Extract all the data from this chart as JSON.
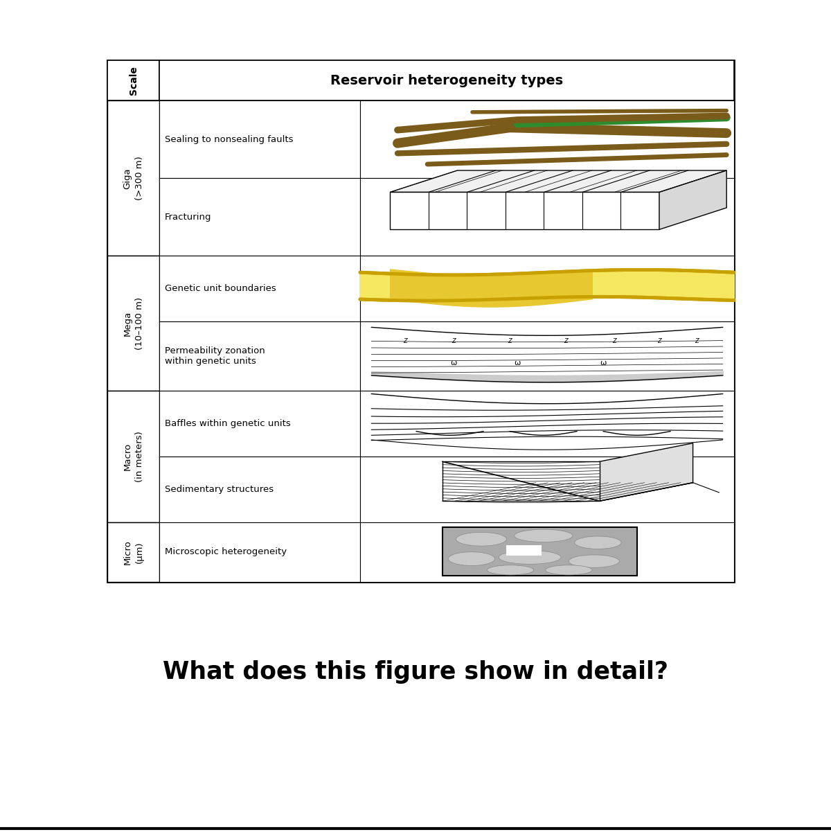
{
  "title": "Reservoir heterogeneity types",
  "question": "What does this figure show in detail?",
  "bg_color": "#ffffff",
  "col1_label": "Scale",
  "scale_groups": [
    {
      "label": "Giga\n(>300 m)",
      "rows": [
        "Sealing to nonsealing faults",
        "Fracturing"
      ]
    },
    {
      "label": "Mega\n(10–100 m)",
      "rows": [
        "Genetic unit boundaries",
        "Permeability zonation\nwithin genetic units"
      ]
    },
    {
      "label": "Macro\n(in meters)",
      "rows": [
        "Baffles within genetic units",
        "Sedimentary structures"
      ]
    },
    {
      "label": "Micro\n(μm)",
      "rows": [
        "Microscopic heterogeneity"
      ]
    }
  ],
  "brown_color": "#7B5B1A",
  "green_color": "#2E8B2E",
  "yellow_color": "#F5E860",
  "gold_color": "#C8A000",
  "light_gray": "#DDDDDD",
  "mid_gray": "#AAAAAA"
}
